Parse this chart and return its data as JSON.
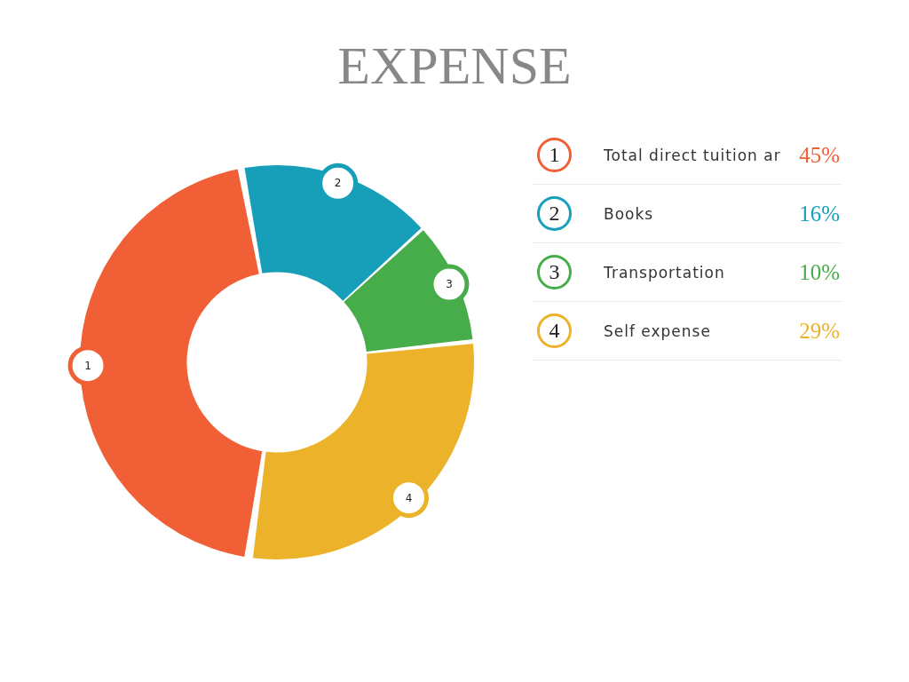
{
  "chart_data": {
    "type": "donut",
    "title": "EXPENSE",
    "categories": [
      "Total direct tuition ar",
      "Books",
      "Transportation",
      "Self expense"
    ],
    "values": [
      45,
      16,
      10,
      29
    ],
    "colors": [
      "#f05f35",
      "#179fba",
      "#47ad4a",
      "#ebb22a"
    ],
    "value_labels": [
      "45%",
      "16%",
      "10%",
      "29%"
    ],
    "annotations": [
      "1",
      "2",
      "3",
      "4"
    ],
    "legend": "right"
  }
}
